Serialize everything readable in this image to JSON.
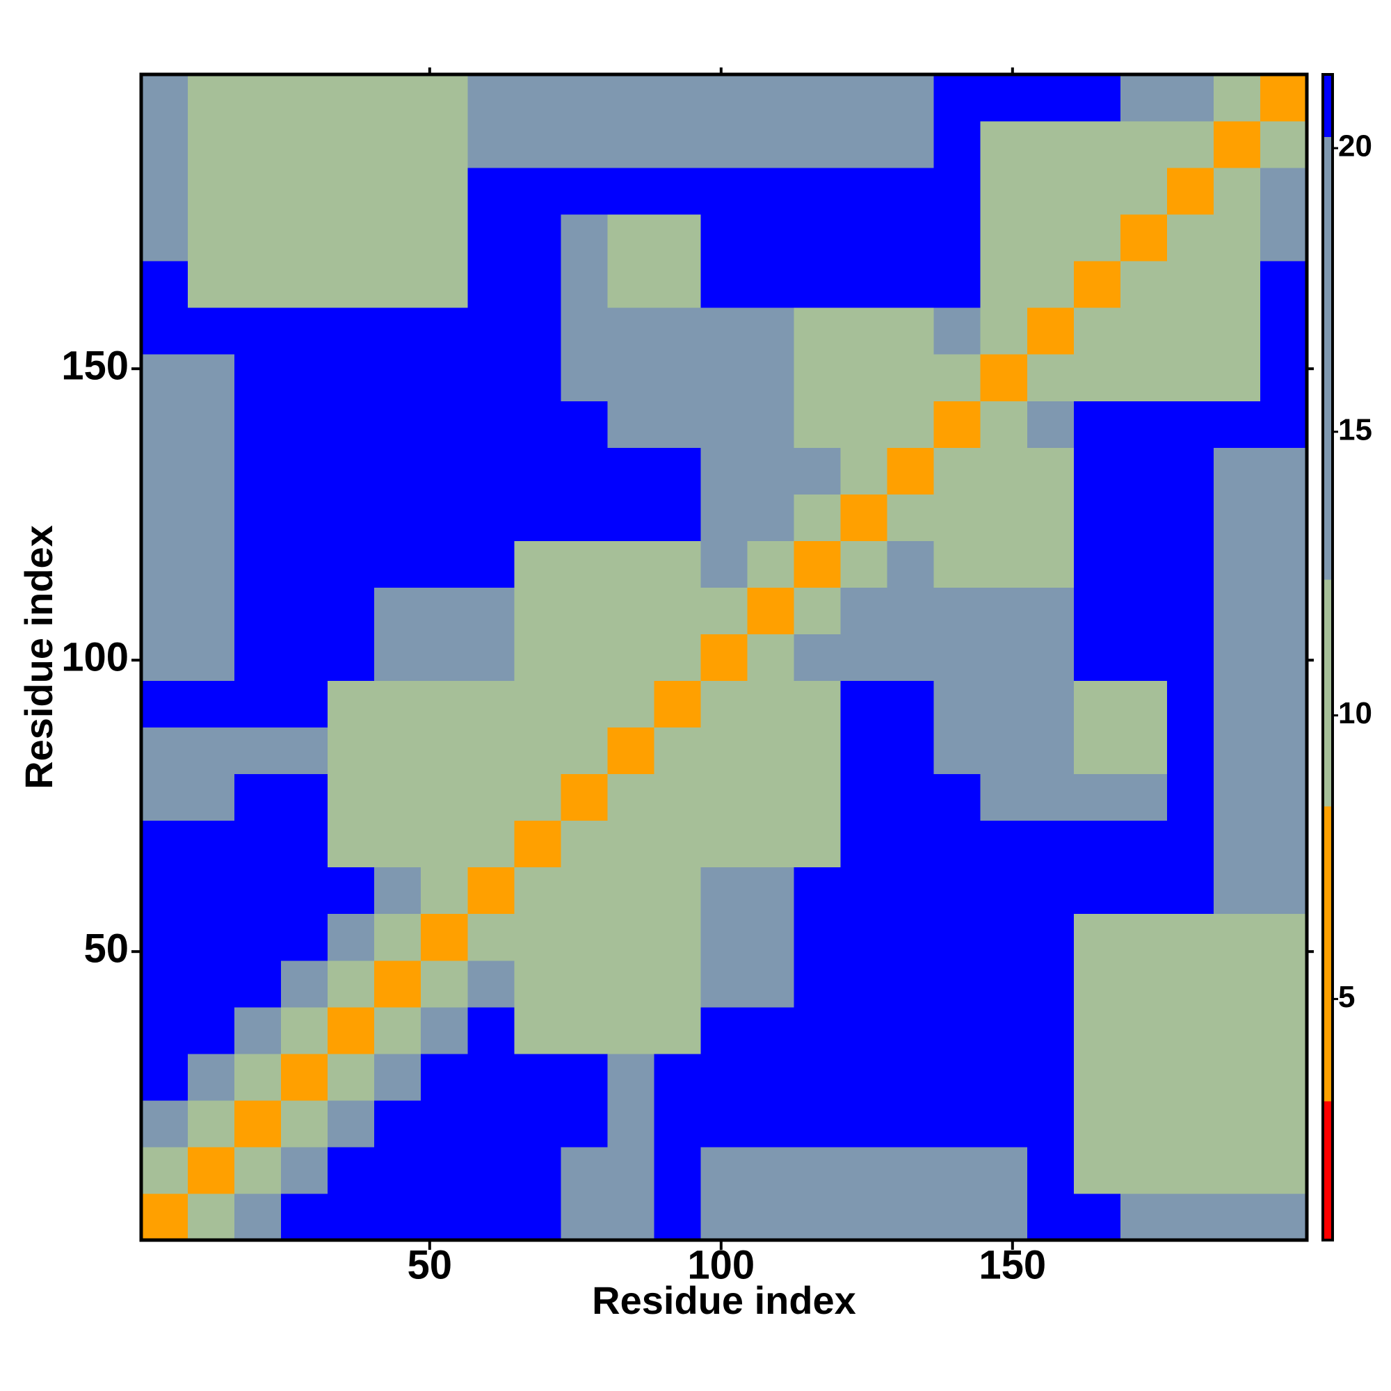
{
  "chart_data": {
    "type": "heatmap",
    "x_label": "Residue index",
    "y_label": "Residue index",
    "x": [
      4.5,
      12.5,
      20.5,
      28.5,
      36.5,
      44.5,
      52.5,
      60.5,
      68.5,
      76.5,
      84.5,
      92.5,
      100.5,
      108.5,
      116.5,
      124.5,
      132.5,
      140.5,
      148.5,
      156.5,
      164.5,
      172.5,
      180.5,
      188.5,
      196.5
    ],
    "y": [
      4.5,
      12.5,
      20.5,
      28.5,
      36.5,
      44.5,
      52.5,
      60.5,
      68.5,
      76.5,
      84.5,
      92.5,
      100.5,
      108.5,
      116.5,
      124.5,
      132.5,
      140.5,
      148.5,
      156.5,
      164.5,
      172.5,
      180.5,
      188.5,
      196.5
    ],
    "z": [
      [
        4,
        9,
        15,
        21,
        21,
        21,
        21,
        21,
        21,
        16,
        16,
        21,
        15,
        15,
        15,
        15,
        15,
        15,
        15,
        21,
        21,
        13,
        13,
        13,
        13
      ],
      [
        9,
        4,
        9,
        15,
        21,
        21,
        21,
        21,
        21,
        16,
        16,
        21,
        15,
        15,
        15,
        15,
        15,
        15,
        15,
        21,
        12,
        12,
        12,
        12,
        12
      ],
      [
        15,
        9,
        4,
        9,
        15,
        21,
        21,
        21,
        21,
        21,
        17,
        21,
        21,
        21,
        21,
        21,
        21,
        21,
        21,
        21,
        12,
        12,
        12,
        12,
        12
      ],
      [
        21,
        15,
        9,
        4,
        9,
        15,
        21,
        21,
        21,
        21,
        17,
        21,
        21,
        21,
        21,
        21,
        21,
        21,
        21,
        21,
        12,
        12,
        12,
        12,
        12
      ],
      [
        21,
        21,
        15,
        9,
        4,
        9,
        15,
        21,
        12,
        12,
        12,
        12,
        21,
        21,
        21,
        21,
        21,
        21,
        21,
        21,
        12,
        12,
        12,
        12,
        12
      ],
      [
        21,
        21,
        21,
        15,
        9,
        4,
        9,
        15,
        12,
        12,
        12,
        12,
        16,
        16,
        21,
        21,
        21,
        21,
        21,
        21,
        12,
        12,
        12,
        12,
        12
      ],
      [
        21,
        21,
        21,
        21,
        15,
        9,
        4,
        9,
        12,
        12,
        12,
        12,
        16,
        16,
        21,
        21,
        21,
        21,
        21,
        21,
        12,
        12,
        12,
        12,
        12
      ],
      [
        21,
        21,
        21,
        21,
        21,
        15,
        9,
        4,
        9,
        12,
        12,
        12,
        16,
        16,
        21,
        21,
        21,
        21,
        21,
        21,
        21,
        21,
        21,
        14,
        14
      ],
      [
        21,
        21,
        21,
        21,
        12,
        12,
        12,
        9,
        4,
        9,
        12,
        12,
        12,
        12,
        12,
        21,
        21,
        21,
        21,
        21,
        21,
        21,
        21,
        14,
        14
      ],
      [
        16,
        16,
        21,
        21,
        12,
        12,
        12,
        12,
        9,
        4,
        9,
        12,
        12,
        12,
        12,
        21,
        21,
        21,
        14,
        14,
        14,
        14,
        21,
        14,
        14
      ],
      [
        16,
        16,
        17,
        17,
        12,
        12,
        12,
        12,
        12,
        9,
        4,
        9,
        12,
        12,
        12,
        21,
        21,
        13,
        13,
        13,
        11,
        11,
        21,
        14,
        14
      ],
      [
        21,
        21,
        21,
        21,
        12,
        12,
        12,
        12,
        12,
        12,
        9,
        4,
        9,
        12,
        12,
        21,
        21,
        13,
        13,
        13,
        11,
        11,
        21,
        14,
        14
      ],
      [
        15,
        15,
        21,
        21,
        21,
        16,
        16,
        16,
        12,
        12,
        12,
        9,
        4,
        9,
        13,
        13,
        13,
        13,
        13,
        13,
        21,
        21,
        21,
        14,
        14
      ],
      [
        15,
        15,
        21,
        21,
        21,
        16,
        16,
        16,
        12,
        12,
        12,
        12,
        9,
        4,
        9,
        13,
        13,
        13,
        13,
        13,
        21,
        21,
        21,
        14,
        14
      ],
      [
        15,
        15,
        21,
        21,
        21,
        21,
        21,
        21,
        12,
        12,
        12,
        12,
        13,
        9,
        4,
        9,
        13,
        12,
        12,
        12,
        21,
        21,
        21,
        14,
        14
      ],
      [
        15,
        15,
        21,
        21,
        21,
        21,
        21,
        21,
        21,
        21,
        21,
        21,
        13,
        13,
        9,
        4,
        9,
        12,
        12,
        12,
        21,
        21,
        21,
        14,
        14
      ],
      [
        15,
        15,
        21,
        21,
        21,
        21,
        21,
        21,
        21,
        21,
        21,
        21,
        13,
        13,
        13,
        9,
        4,
        9,
        12,
        12,
        21,
        21,
        21,
        14,
        14
      ],
      [
        15,
        15,
        21,
        21,
        21,
        21,
        21,
        21,
        21,
        21,
        13,
        13,
        13,
        13,
        12,
        12,
        9,
        4,
        9,
        15,
        21,
        21,
        21,
        21,
        21
      ],
      [
        15,
        15,
        21,
        21,
        21,
        21,
        21,
        21,
        21,
        14,
        13,
        13,
        13,
        13,
        12,
        12,
        12,
        9,
        4,
        9,
        11,
        11,
        11,
        11,
        21
      ],
      [
        21,
        21,
        21,
        21,
        21,
        21,
        21,
        21,
        21,
        14,
        13,
        13,
        13,
        13,
        12,
        12,
        12,
        15,
        9,
        4,
        9,
        11,
        11,
        11,
        21
      ],
      [
        21,
        12,
        12,
        12,
        12,
        12,
        12,
        21,
        21,
        14,
        11,
        11,
        21,
        21,
        21,
        21,
        21,
        21,
        11,
        9,
        4,
        9,
        11,
        11,
        21
      ],
      [
        13,
        12,
        12,
        12,
        12,
        12,
        12,
        21,
        21,
        14,
        11,
        11,
        21,
        21,
        21,
        21,
        21,
        21,
        11,
        11,
        9,
        4,
        9,
        11,
        15
      ],
      [
        13,
        12,
        12,
        12,
        12,
        12,
        12,
        21,
        21,
        21,
        21,
        21,
        21,
        21,
        21,
        21,
        21,
        21,
        11,
        11,
        11,
        9,
        4,
        9,
        15
      ],
      [
        13,
        12,
        12,
        12,
        12,
        12,
        12,
        14,
        14,
        14,
        14,
        14,
        14,
        14,
        14,
        14,
        14,
        21,
        11,
        11,
        11,
        11,
        9,
        4,
        9
      ],
      [
        13,
        12,
        12,
        12,
        12,
        12,
        12,
        14,
        14,
        14,
        14,
        14,
        14,
        14,
        14,
        14,
        14,
        21,
        21,
        21,
        21,
        15,
        15,
        9,
        4
      ]
    ],
    "xlim": [
      0.5,
      200.5
    ],
    "ylim": [
      0.5,
      200.5
    ],
    "xticks": [
      50,
      100,
      150
    ],
    "yticks": [
      50,
      100,
      150
    ],
    "clim": [
      0.75,
      21.3
    ],
    "cticks": [
      5,
      10,
      15,
      20
    ],
    "color_breaks": [
      3.2,
      8.4,
      12.4,
      20.2
    ],
    "colors": [
      "#ff0000",
      "#ffa000",
      "#a6bf98",
      "#7f98b0",
      "#0000ff"
    ]
  }
}
